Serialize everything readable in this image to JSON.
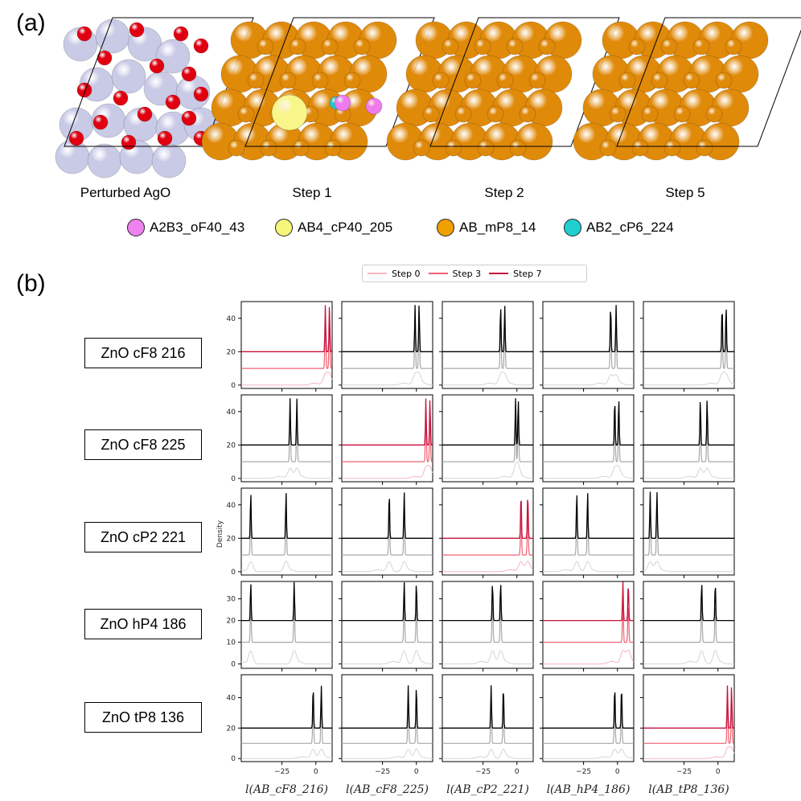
{
  "panel_a": {
    "label": "(a)",
    "captions": [
      "Perturbed AgO",
      "Step 1",
      "Step 2",
      "Step 5"
    ],
    "legend": [
      {
        "label": "A2B3_oF40_43",
        "color": "#ee82ee"
      },
      {
        "label": "AB4_cP40_205",
        "color": "#f5f57a"
      },
      {
        "label": "AB_mP8_14",
        "color": "#f0a000"
      },
      {
        "label": "AB2_cP6_224",
        "color": "#20d0d0"
      }
    ],
    "colors": {
      "ag": "#c8cae6",
      "o": "#e00010",
      "orange": "#e08a0a",
      "orange_edge": "#9a5a00",
      "yellow": "#f8f68a",
      "pink": "#ee7aee",
      "cyan": "#20c8d0"
    }
  },
  "panel_b": {
    "label": "(b)",
    "step_legend": [
      {
        "label": "Step 0",
        "color": "#f4b6c2"
      },
      {
        "label": "Step 3",
        "color": "#f06070"
      },
      {
        "label": "Step 7",
        "color": "#c8103c"
      }
    ],
    "row_labels": [
      "ZnO cF8 216",
      "ZnO cF8 225",
      "ZnO cP2 221",
      "ZnO hP4 186",
      "ZnO tP8 136"
    ],
    "ylabel": "Density",
    "col_xlabels": [
      "l(AB_cF8_216)",
      "l(AB_cF8_225)",
      "l(AB_cP2_221)",
      "l(AB_hP4_186)",
      "l(AB_tP8_136)"
    ]
  },
  "chart_data": {
    "type": "line",
    "description_grid": "5x5 density plots, offset stacked curves for Step 0 (offset 0), Step 3 (offset 10), Step 7 (offset 20)",
    "xlim": [
      -55,
      12
    ],
    "xticks": [
      -25,
      0
    ],
    "rows": [
      {
        "row": "ZnO cF8 216",
        "yticks": [
          0,
          20,
          40
        ],
        "ylim": [
          -2,
          50
        ],
        "cols": [
          {
            "peaks": [
              7,
              10
            ],
            "highlight": true
          },
          {
            "peaks": [
              -1,
              2
            ],
            "highlight": false
          },
          {
            "peaks": [
              -12,
              -9
            ],
            "highlight": false
          },
          {
            "peaks": [
              -5,
              -1
            ],
            "highlight": false
          },
          {
            "peaks": [
              3,
              6
            ],
            "highlight": false
          }
        ]
      },
      {
        "row": "ZnO cF8 225",
        "yticks": [
          0,
          20,
          40
        ],
        "ylim": [
          -2,
          50
        ],
        "cols": [
          {
            "peaks": [
              -19,
              -14
            ],
            "highlight": false
          },
          {
            "peaks": [
              7,
              10
            ],
            "highlight": true
          },
          {
            "peaks": [
              -1,
              1
            ],
            "highlight": false
          },
          {
            "peaks": [
              -2,
              1
            ],
            "highlight": false
          },
          {
            "peaks": [
              -13,
              -8
            ],
            "highlight": false
          }
        ]
      },
      {
        "row": "ZnO cP2 221",
        "yticks": [
          0,
          20,
          40
        ],
        "ylim": [
          -2,
          50
        ],
        "cols": [
          {
            "peaks": [
              -48,
              -22
            ],
            "highlight": false
          },
          {
            "peaks": [
              -20,
              -9
            ],
            "highlight": false
          },
          {
            "peaks": [
              3,
              8
            ],
            "highlight": true
          },
          {
            "peaks": [
              -30,
              -22
            ],
            "highlight": false
          },
          {
            "peaks": [
              -50,
              -45
            ],
            "highlight": false
          }
        ]
      },
      {
        "row": "ZnO hP4 186",
        "yticks": [
          0,
          10,
          20,
          30
        ],
        "ylim": [
          -2,
          38
        ],
        "cols": [
          {
            "peaks": [
              -48,
              -16
            ],
            "highlight": false
          },
          {
            "peaks": [
              -9,
              0
            ],
            "highlight": false
          },
          {
            "peaks": [
              -18,
              -12
            ],
            "highlight": false
          },
          {
            "peaks": [
              4,
              8
            ],
            "highlight": true
          },
          {
            "peaks": [
              -12,
              -2
            ],
            "highlight": false
          }
        ]
      },
      {
        "row": "ZnO tP8 136",
        "yticks": [
          0,
          20,
          40
        ],
        "ylim": [
          -2,
          55
        ],
        "cols": [
          {
            "peaks": [
              -2,
              4
            ],
            "highlight": false
          },
          {
            "peaks": [
              -6,
              0
            ],
            "highlight": false
          },
          {
            "peaks": [
              -19,
              -10
            ],
            "highlight": false
          },
          {
            "peaks": [
              -2,
              3
            ],
            "highlight": false
          },
          {
            "peaks": [
              7,
              10
            ],
            "highlight": true
          }
        ]
      }
    ],
    "x_axis_labels": [
      "l(AB_cF8_216)",
      "l(AB_cF8_225)",
      "l(AB_cP2_221)",
      "l(AB_hP4_186)",
      "l(AB_tP8_136)"
    ],
    "ylabel": "Density",
    "legend": [
      "Step 0",
      "Step 3",
      "Step 7"
    ]
  }
}
